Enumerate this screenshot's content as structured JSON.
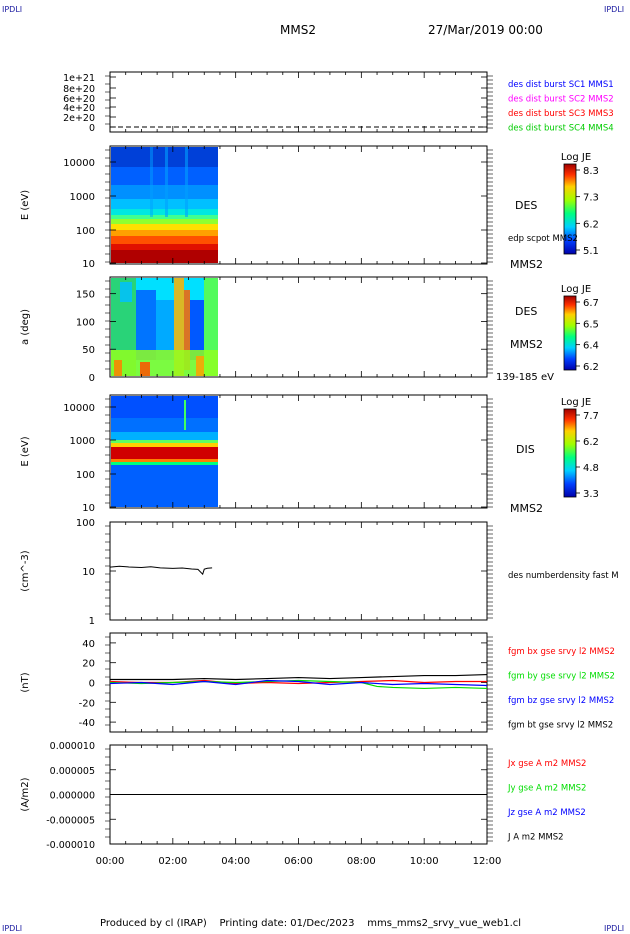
{
  "header": {
    "corner_left": "IPDLI",
    "corner_right": "IPDLI",
    "spacecraft": "MMS2",
    "date": "27/Mar/2019 00:00"
  },
  "footer": {
    "text": "Produced by cl (IRAP)    Printing date: 01/Dec/2023    mms_mms2_srvy_vue_web1.cl",
    "corner_left": "IPDLI",
    "corner_right": "IPDLI"
  },
  "colors": {
    "mms1": "#0000ff",
    "mms2": "#ff00ff",
    "mms3": "#ff0000",
    "mms4": "#00cc00",
    "bx": "#ff0000",
    "by": "#00dd00",
    "bz": "#0000ff",
    "bt": "#000000"
  },
  "chart_data": [
    {
      "type": "line",
      "panel": "availability",
      "ylabel": "",
      "yticks": [
        "0",
        "2e+20",
        "4e+20",
        "6e+20",
        "8e+20",
        "1e+21"
      ],
      "legend": [
        "des dist burst SC1 MMS1",
        "des dist burst SC2 MMS2",
        "des dist burst SC3 MMS3",
        "des dist burst SC4 MMS4"
      ],
      "series": [
        {
          "values": [
            0,
            0
          ]
        }
      ]
    },
    {
      "type": "heatmap",
      "panel": "des-energy",
      "ylabel": "E (eV)",
      "yscale": "log",
      "yticks": [
        "10",
        "100",
        "1000",
        "10000"
      ],
      "data_xrange": [
        "00:00",
        "03:25"
      ],
      "label": "DES",
      "sublabel": "edp scpot MMS2",
      "sc_label": "MMS2",
      "colorbar": {
        "title": "Log JE",
        "ticks": [
          "8.3",
          "7.3",
          "6.2",
          "5.1"
        ]
      }
    },
    {
      "type": "heatmap",
      "panel": "des-pitch",
      "ylabel": "a (deg)",
      "yticks": [
        "0",
        "50",
        "100",
        "150"
      ],
      "ylim": [
        0,
        180
      ],
      "data_xrange": [
        "00:00",
        "03:25"
      ],
      "label": "DES",
      "sc_label": "MMS2",
      "energy_label": "139-185 eV",
      "colorbar": {
        "title": "Log JE",
        "ticks": [
          "6.7",
          "6.5",
          "6.4",
          "6.2"
        ]
      }
    },
    {
      "type": "heatmap",
      "panel": "dis-energy",
      "ylabel": "E (eV)",
      "yscale": "log",
      "yticks": [
        "10",
        "100",
        "1000",
        "10000"
      ],
      "data_xrange": [
        "00:00",
        "03:25"
      ],
      "label": "DIS",
      "sc_label": "MMS2",
      "colorbar": {
        "title": "Log JE",
        "ticks": [
          "7.7",
          "6.2",
          "4.8",
          "3.3"
        ]
      }
    },
    {
      "type": "line",
      "panel": "density",
      "ylabel": "(cm^-3)",
      "yscale": "log",
      "yticks": [
        "1",
        "10",
        "100"
      ],
      "ylim": [
        1,
        100
      ],
      "legend": [
        "des numberdensity fast M"
      ],
      "series": [
        {
          "x": [
            0.0,
            0.3,
            0.6,
            1.0,
            1.3,
            1.6,
            2.0,
            2.3,
            2.6,
            2.8,
            2.95,
            3.0,
            3.1,
            3.25
          ],
          "values": [
            12.0,
            12.5,
            12.1,
            11.8,
            12.2,
            11.6,
            11.3,
            11.5,
            11.0,
            10.8,
            8.6,
            10.9,
            11.4,
            11.6
          ]
        }
      ]
    },
    {
      "type": "line",
      "panel": "magnetic-field",
      "ylabel": "(nT)",
      "yticks": [
        "-40",
        "-20",
        "0",
        "20",
        "40"
      ],
      "ylim": [
        -50,
        50
      ],
      "legend": [
        "fgm bx gse srvy l2 MMS2",
        "fgm by gse srvy l2 MMS2",
        "fgm bz gse srvy l2 MMS2",
        "fgm bt gse srvy l2 MMS2"
      ],
      "series": [
        {
          "name": "fgm bx gse srvy l2 MMS2",
          "x": [
            0,
            1,
            2,
            3,
            4,
            5,
            6,
            7,
            8,
            9,
            10,
            11,
            12
          ],
          "values": [
            1,
            0,
            0,
            2,
            -1,
            0,
            -1,
            0,
            1,
            2,
            0,
            1,
            1
          ]
        },
        {
          "name": "fgm by gse srvy l2 MMS2",
          "x": [
            0,
            1,
            2,
            3,
            4,
            5,
            6,
            7,
            8,
            8.5,
            9,
            10,
            11,
            12
          ],
          "values": [
            0,
            -1,
            0,
            1,
            0,
            1,
            2,
            1,
            0,
            -4,
            -5,
            -6,
            -5,
            -6
          ]
        },
        {
          "name": "fgm bz gse srvy l2 MMS2",
          "x": [
            0,
            1,
            2,
            3,
            4,
            5,
            6,
            7,
            8,
            9,
            10,
            11,
            12
          ],
          "values": [
            -1,
            0,
            -2,
            1,
            -2,
            2,
            1,
            -2,
            0,
            -2,
            -1,
            -2,
            -3
          ]
        },
        {
          "name": "fgm bt gse srvy l2 MMS2",
          "x": [
            0,
            1,
            2,
            3,
            4,
            5,
            6,
            7,
            8,
            9,
            10,
            11,
            12
          ],
          "values": [
            3,
            3,
            3,
            4,
            3,
            4,
            5,
            4,
            5,
            6,
            7,
            7,
            8
          ]
        }
      ]
    },
    {
      "type": "line",
      "panel": "current-density",
      "ylabel": "(A/m2)",
      "yticks": [
        "-0.000010",
        "-0.000005",
        "0.000000",
        "0.000005",
        "0.000010"
      ],
      "ylim": [
        -1e-05,
        1e-05
      ],
      "legend": [
        "Jx gse A m2 MMS2",
        "Jy gse A m2 MMS2",
        "Jz gse A m2 MMS2",
        "J A m2 MMS2"
      ],
      "series": [
        {
          "name": "J A m2 MMS2",
          "x": [
            0,
            12
          ],
          "values": [
            0,
            0
          ]
        }
      ]
    }
  ],
  "xaxis": {
    "ticks": [
      "00:00",
      "02:00",
      "04:00",
      "06:00",
      "08:00",
      "10:00",
      "12:00"
    ],
    "range_hours": [
      0,
      12
    ]
  }
}
